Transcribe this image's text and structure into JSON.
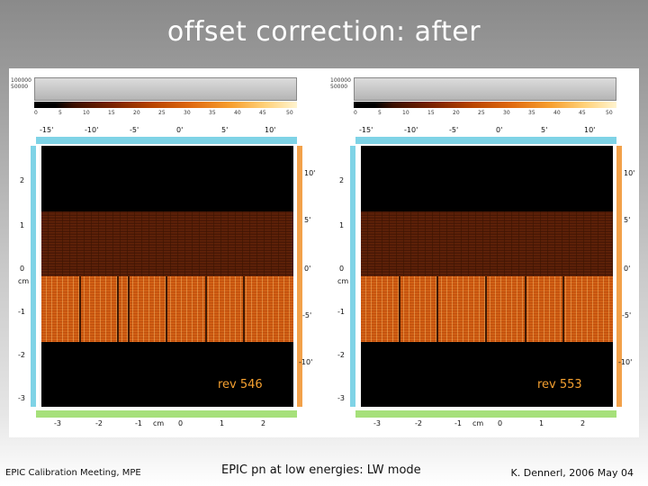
{
  "slide": {
    "title": "offset correction: after"
  },
  "panels": [
    {
      "rev_label": "rev 546",
      "hist_y_labels": [
        "100000",
        "50000"
      ],
      "colorbar_ticks": [
        "0",
        "5",
        "10",
        "15",
        "20",
        "25",
        "30",
        "35",
        "40",
        "45",
        "50"
      ],
      "top_axis_ticks": [
        "-15'",
        "-10'",
        "-5'",
        "0'",
        "5'",
        "10'"
      ],
      "bottom_axis_ticks": [
        "-3",
        "-2",
        "-1",
        "cm",
        "0",
        "1",
        "2"
      ],
      "left_axis_ticks": [
        "2",
        "1",
        "0",
        "cm",
        "-1",
        "-2",
        "-3"
      ],
      "right_axis_ticks": [
        "10'",
        "5'",
        "0'",
        "-5'",
        "-10'"
      ]
    },
    {
      "rev_label": "rev 553",
      "hist_y_labels": [
        "100000",
        "50000"
      ],
      "colorbar_ticks": [
        "0",
        "5",
        "10",
        "15",
        "20",
        "25",
        "30",
        "35",
        "40",
        "45",
        "50"
      ],
      "top_axis_ticks": [
        "-15'",
        "-10'",
        "-5'",
        "0'",
        "5'",
        "10'"
      ],
      "bottom_axis_ticks": [
        "-3",
        "-2",
        "-1",
        "cm",
        "0",
        "1",
        "2"
      ],
      "left_axis_ticks": [
        "2",
        "1",
        "0",
        "cm",
        "-1",
        "-2",
        "-3"
      ],
      "right_axis_ticks": [
        "10'",
        "5'",
        "0'",
        "-5'",
        "-10'"
      ]
    }
  ],
  "footer": {
    "left": "EPIC Calibration Meeting, MPE",
    "center": "EPIC pn at low energies: LW mode",
    "right": "K. Dennerl, 2006 May 04"
  }
}
